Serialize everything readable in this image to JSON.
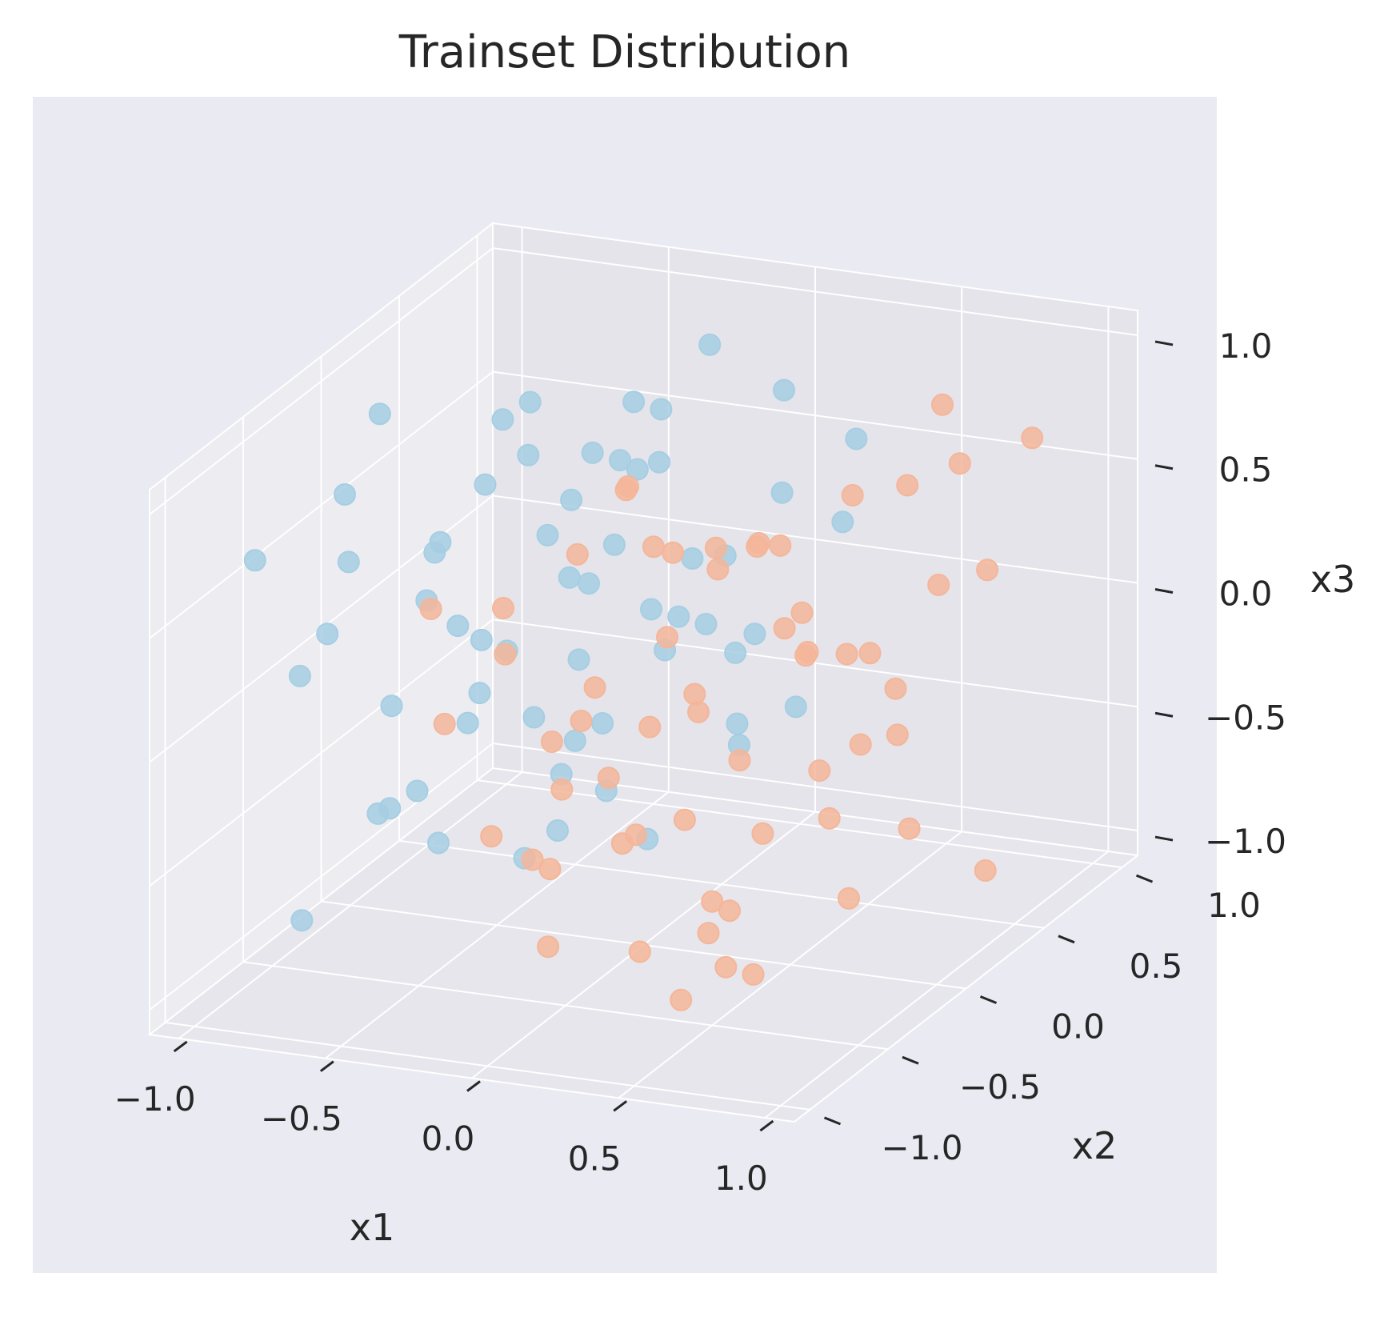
{
  "chart_data": {
    "type": "scatter",
    "projection": "3d",
    "title": "Trainset Distribution",
    "xlabel": "x1",
    "ylabel": "x2",
    "zlabel": "x3",
    "xlim": [
      -1.1,
      1.1
    ],
    "ylim": [
      -1.1,
      1.1
    ],
    "zlim": [
      -1.1,
      1.1
    ],
    "xticks": [
      -1.0,
      -0.5,
      0.0,
      0.5,
      1.0
    ],
    "yticks": [
      -1.0,
      -0.5,
      0.0,
      0.5,
      1.0
    ],
    "zticks": [
      -1.0,
      -0.5,
      0.0,
      0.5,
      1.0
    ],
    "xtick_labels": [
      "−1.0",
      "−0.5",
      "0.0",
      "0.5",
      "1.0"
    ],
    "ytick_labels": [
      "−1.0",
      "−0.5",
      "0.0",
      "0.5",
      "1.0"
    ],
    "ztick_labels": [
      "−1.0",
      "−0.5",
      "0.0",
      "0.5",
      "1.0"
    ],
    "grid": true,
    "legend": "none",
    "colors": {
      "figure_background": "#ffffff",
      "axes_background": "#eaeaf2",
      "pane": "#e4e4ea",
      "grid": "#ffffff",
      "class_0": "#a6cee3",
      "class_1": "#f4b69a"
    },
    "series": [
      {
        "color": "#a6cee3",
        "points": [
          [
            -0.9,
            -0.8,
            0.7
          ],
          [
            -0.7,
            -0.6,
            0.9
          ],
          [
            -0.5,
            -0.4,
            0.6
          ],
          [
            -0.8,
            0.2,
            0.3
          ],
          [
            -0.6,
            0.4,
            0.8
          ],
          [
            -0.4,
            0.6,
            0.5
          ],
          [
            -0.2,
            0.8,
            0.9
          ],
          [
            0.0,
            0.9,
            0.7
          ],
          [
            -0.9,
            0.5,
            -0.2
          ],
          [
            -0.7,
            0.7,
            0.1
          ],
          [
            -0.5,
            0.9,
            0.3
          ],
          [
            -0.3,
            0.3,
            -0.4
          ],
          [
            -0.1,
            0.5,
            0.2
          ],
          [
            -0.8,
            -0.2,
            -0.6
          ],
          [
            -0.6,
            0.0,
            -0.3
          ],
          [
            -0.4,
            0.2,
            -0.8
          ],
          [
            -0.2,
            0.4,
            -0.9
          ],
          [
            0.0,
            0.6,
            -0.5
          ],
          [
            -0.9,
            -0.5,
            -0.9
          ],
          [
            -0.7,
            -0.3,
            -0.1
          ],
          [
            -0.5,
            -0.1,
            0.1
          ],
          [
            -0.3,
            0.1,
            0.6
          ],
          [
            -0.1,
            0.3,
            0.9
          ],
          [
            0.1,
            0.7,
            0.4
          ],
          [
            -0.8,
            0.8,
            -0.7
          ],
          [
            -0.6,
            0.6,
            -0.8
          ],
          [
            -0.4,
            0.8,
            -0.2
          ],
          [
            -0.2,
            0.9,
            0.0
          ],
          [
            0.2,
            0.9,
            0.2
          ],
          [
            -0.9,
            0.0,
            0.9
          ],
          [
            -0.7,
            0.3,
            0.5
          ],
          [
            -0.5,
            0.5,
            -0.6
          ],
          [
            -0.3,
            0.7,
            -0.3
          ],
          [
            -0.1,
            0.8,
            -0.7
          ],
          [
            -0.8,
            -0.7,
            0.2
          ],
          [
            -0.6,
            -0.5,
            -0.4
          ],
          [
            -0.4,
            -0.3,
            0.0
          ],
          [
            -0.2,
            -0.1,
            0.4
          ],
          [
            0.0,
            0.1,
            0.8
          ],
          [
            0.1,
            0.4,
            -0.1
          ],
          [
            -0.9,
            0.3,
            0.0
          ],
          [
            -0.7,
            0.9,
            -0.5
          ],
          [
            -0.5,
            0.2,
            0.7
          ],
          [
            -0.3,
            -0.2,
            -0.7
          ],
          [
            -0.1,
            0.0,
            0.5
          ],
          [
            0.2,
            0.6,
            -0.4
          ],
          [
            0.3,
            0.8,
            0.6
          ],
          [
            -0.6,
            -0.9,
            0.5
          ],
          [
            -0.4,
            -0.7,
            -0.2
          ],
          [
            -0.2,
            -0.5,
            0.3
          ],
          [
            -0.8,
            0.6,
            0.6
          ],
          [
            -0.6,
            0.8,
            0.4
          ],
          [
            -0.4,
            0.4,
            0.1
          ],
          [
            -0.2,
            0.6,
            -0.1
          ],
          [
            0.0,
            0.4,
            0.0
          ],
          [
            -0.9,
            -0.2,
            0.4
          ],
          [
            -0.7,
            0.0,
            -0.8
          ],
          [
            -0.5,
            0.7,
            -0.9
          ],
          [
            -0.3,
            0.5,
            0.8
          ],
          [
            -0.1,
            0.9,
            -0.3
          ]
        ]
      },
      {
        "color": "#f4b69a",
        "points": [
          [
            0.9,
            0.8,
            0.7
          ],
          [
            0.7,
            0.6,
            0.9
          ],
          [
            0.5,
            0.4,
            0.6
          ],
          [
            0.8,
            -0.2,
            0.3
          ],
          [
            0.6,
            -0.4,
            0.8
          ],
          [
            0.4,
            -0.6,
            0.5
          ],
          [
            0.2,
            -0.8,
            0.9
          ],
          [
            0.0,
            -0.9,
            0.7
          ],
          [
            0.9,
            -0.5,
            -0.2
          ],
          [
            0.7,
            -0.7,
            0.1
          ],
          [
            0.5,
            -0.9,
            0.3
          ],
          [
            0.3,
            -0.3,
            -0.4
          ],
          [
            0.1,
            -0.5,
            0.2
          ],
          [
            0.8,
            0.2,
            -0.6
          ],
          [
            0.6,
            0.0,
            -0.3
          ],
          [
            0.4,
            -0.2,
            -0.8
          ],
          [
            0.2,
            -0.4,
            -0.9
          ],
          [
            0.0,
            -0.6,
            -0.5
          ],
          [
            0.9,
            0.5,
            -0.9
          ],
          [
            0.7,
            0.3,
            -0.1
          ],
          [
            0.5,
            0.1,
            0.1
          ],
          [
            0.3,
            -0.1,
            0.6
          ],
          [
            0.1,
            -0.3,
            0.9
          ],
          [
            -0.1,
            -0.7,
            0.4
          ],
          [
            0.8,
            -0.8,
            -0.7
          ],
          [
            0.6,
            -0.6,
            -0.8
          ],
          [
            0.4,
            -0.8,
            -0.2
          ],
          [
            0.2,
            -0.9,
            0.0
          ],
          [
            -0.2,
            -0.9,
            0.2
          ],
          [
            0.9,
            0.0,
            0.9
          ],
          [
            0.7,
            -0.3,
            0.5
          ],
          [
            0.5,
            -0.5,
            -0.6
          ],
          [
            0.3,
            -0.7,
            -0.3
          ],
          [
            0.1,
            -0.8,
            -0.7
          ],
          [
            0.8,
            0.7,
            0.2
          ],
          [
            0.6,
            0.5,
            -0.4
          ],
          [
            0.4,
            0.3,
            0.0
          ],
          [
            0.2,
            0.1,
            0.4
          ],
          [
            0.0,
            -0.1,
            0.8
          ],
          [
            -0.1,
            -0.4,
            -0.1
          ],
          [
            0.9,
            -0.3,
            0.0
          ],
          [
            0.7,
            -0.9,
            -0.5
          ],
          [
            0.5,
            -0.2,
            0.7
          ],
          [
            0.3,
            0.2,
            -0.7
          ],
          [
            0.1,
            0.0,
            0.5
          ],
          [
            -0.2,
            -0.6,
            -0.4
          ],
          [
            -0.3,
            -0.8,
            0.6
          ],
          [
            0.6,
            0.9,
            0.5
          ],
          [
            0.4,
            0.7,
            -0.2
          ],
          [
            0.2,
            0.5,
            0.3
          ],
          [
            0.8,
            -0.6,
            0.6
          ],
          [
            0.6,
            -0.8,
            0.4
          ],
          [
            0.4,
            -0.4,
            0.1
          ],
          [
            0.2,
            -0.6,
            -0.1
          ],
          [
            0.0,
            -0.4,
            0.0
          ],
          [
            0.9,
            0.2,
            0.4
          ],
          [
            0.7,
            0.0,
            -0.8
          ],
          [
            0.5,
            -0.7,
            -0.9
          ],
          [
            0.3,
            -0.5,
            0.8
          ],
          [
            0.1,
            -0.9,
            -0.3
          ]
        ]
      }
    ]
  }
}
